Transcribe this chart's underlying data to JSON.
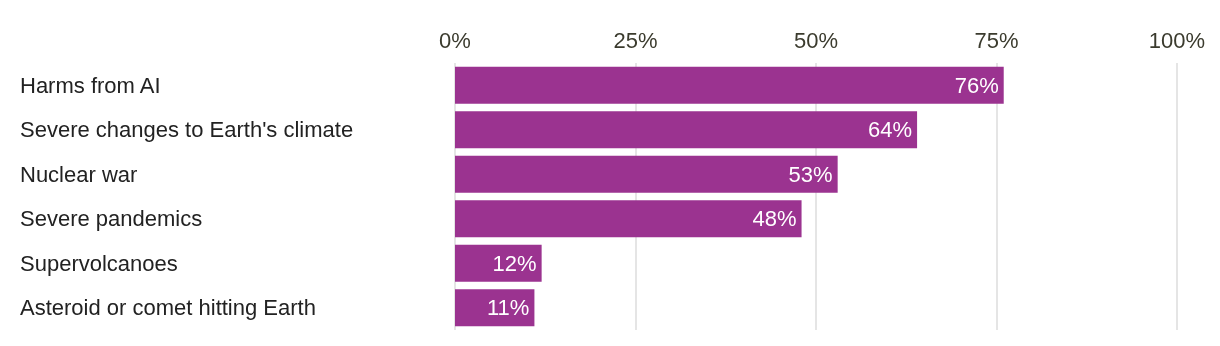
{
  "chart_data": {
    "type": "bar",
    "orientation": "horizontal",
    "categories": [
      "Harms from AI",
      "Severe changes to Earth's climate",
      "Nuclear war",
      "Severe pandemics",
      "Supervolcanoes",
      "Asteroid or comet hitting Earth"
    ],
    "values": [
      76,
      64,
      53,
      48,
      12,
      11
    ],
    "value_labels": [
      "76%",
      "64%",
      "53%",
      "48%",
      "12%",
      "11%"
    ],
    "color": "#9b3390",
    "xlim": [
      0,
      100
    ],
    "xticks": [
      {
        "value": 0,
        "label": "0%"
      },
      {
        "value": 25,
        "label": "25%"
      },
      {
        "value": 50,
        "label": "50%"
      },
      {
        "value": 75,
        "label": "75%"
      },
      {
        "value": 100,
        "label": "100%"
      }
    ],
    "grid": "x"
  }
}
